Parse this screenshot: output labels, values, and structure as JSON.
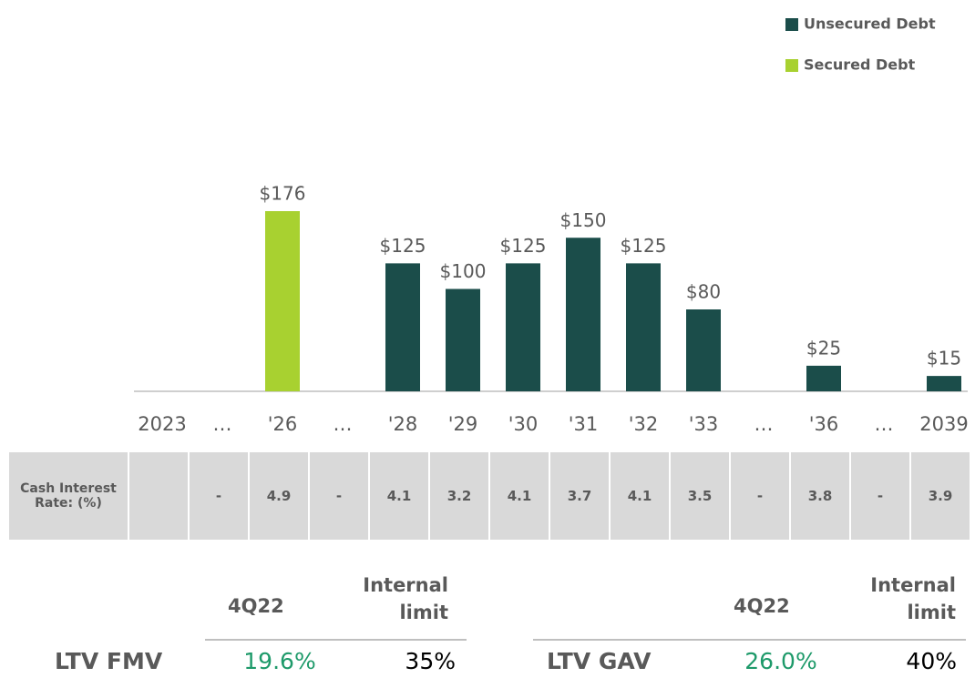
{
  "chart_data": {
    "type": "bar",
    "categories": [
      "2023",
      "…",
      "'26",
      "…",
      "'28",
      "'29",
      "'30",
      "'31",
      "'32",
      "'33",
      "…",
      "'36",
      "…",
      "2039"
    ],
    "series": [
      {
        "name": "Unsecured Debt",
        "color": "#1b4d4a",
        "values": [
          null,
          null,
          null,
          null,
          125,
          100,
          125,
          150,
          125,
          80,
          null,
          25,
          null,
          15
        ],
        "value_labels": [
          null,
          null,
          null,
          null,
          "$125",
          "$100",
          "$125",
          "$150",
          "$125",
          "$80",
          null,
          "$25",
          null,
          "$15"
        ]
      },
      {
        "name": "Secured Debt",
        "color": "#a8d130",
        "values": [
          null,
          null,
          176,
          null,
          null,
          null,
          null,
          null,
          null,
          null,
          null,
          null,
          null,
          null
        ],
        "value_labels": [
          null,
          null,
          "$176",
          null,
          null,
          null,
          null,
          null,
          null,
          null,
          null,
          null,
          null,
          null
        ]
      }
    ],
    "legend": "top-right"
  },
  "rate_table": {
    "label": "Cash Interest Rate: (%)",
    "values": [
      null,
      "-",
      4.9,
      "-",
      4.1,
      3.2,
      4.1,
      3.7,
      4.1,
      3.5,
      "-",
      3.8,
      "-",
      3.9
    ]
  },
  "ltv_tables": [
    {
      "headers": [
        "4Q22",
        "Internal limit"
      ],
      "label": "LTV FMV",
      "values": [
        "19.6%",
        "35%"
      ]
    },
    {
      "headers": [
        "4Q22",
        "Internal limit"
      ],
      "label": "LTV GAV",
      "values": [
        "26.0%",
        "40%"
      ]
    }
  ]
}
